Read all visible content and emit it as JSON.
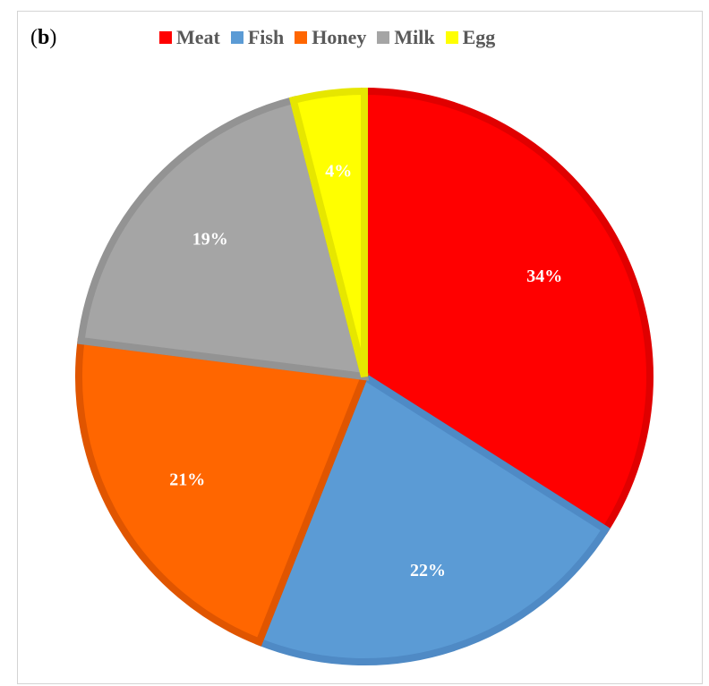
{
  "panel_label": {
    "open": "(",
    "letter": "b",
    "close": ")"
  },
  "legend": {
    "placement": "top",
    "items": [
      {
        "label": "Meat",
        "color": "#ff0000"
      },
      {
        "label": "Fish",
        "color": "#5b9bd5"
      },
      {
        "label": "Honey",
        "color": "#ff6600"
      },
      {
        "label": "Milk",
        "color": "#a5a5a5"
      },
      {
        "label": "Egg",
        "color": "#ffff00"
      }
    ]
  },
  "chart_data": {
    "type": "pie",
    "categories": [
      "Meat",
      "Fish",
      "Honey",
      "Milk",
      "Egg"
    ],
    "values": [
      34,
      22,
      21,
      19,
      4
    ],
    "data_labels": [
      "34%",
      "22%",
      "21%",
      "19%",
      "4%"
    ],
    "colors": [
      "#ff0000",
      "#5b9bd5",
      "#ff6600",
      "#a5a5a5",
      "#ffff00"
    ],
    "edge_colors": [
      "#e00000",
      "#4f8ac5",
      "#e05500",
      "#939393",
      "#e6e600"
    ],
    "start_angle_deg": 0,
    "direction": "clockwise",
    "legend_position": "top"
  }
}
